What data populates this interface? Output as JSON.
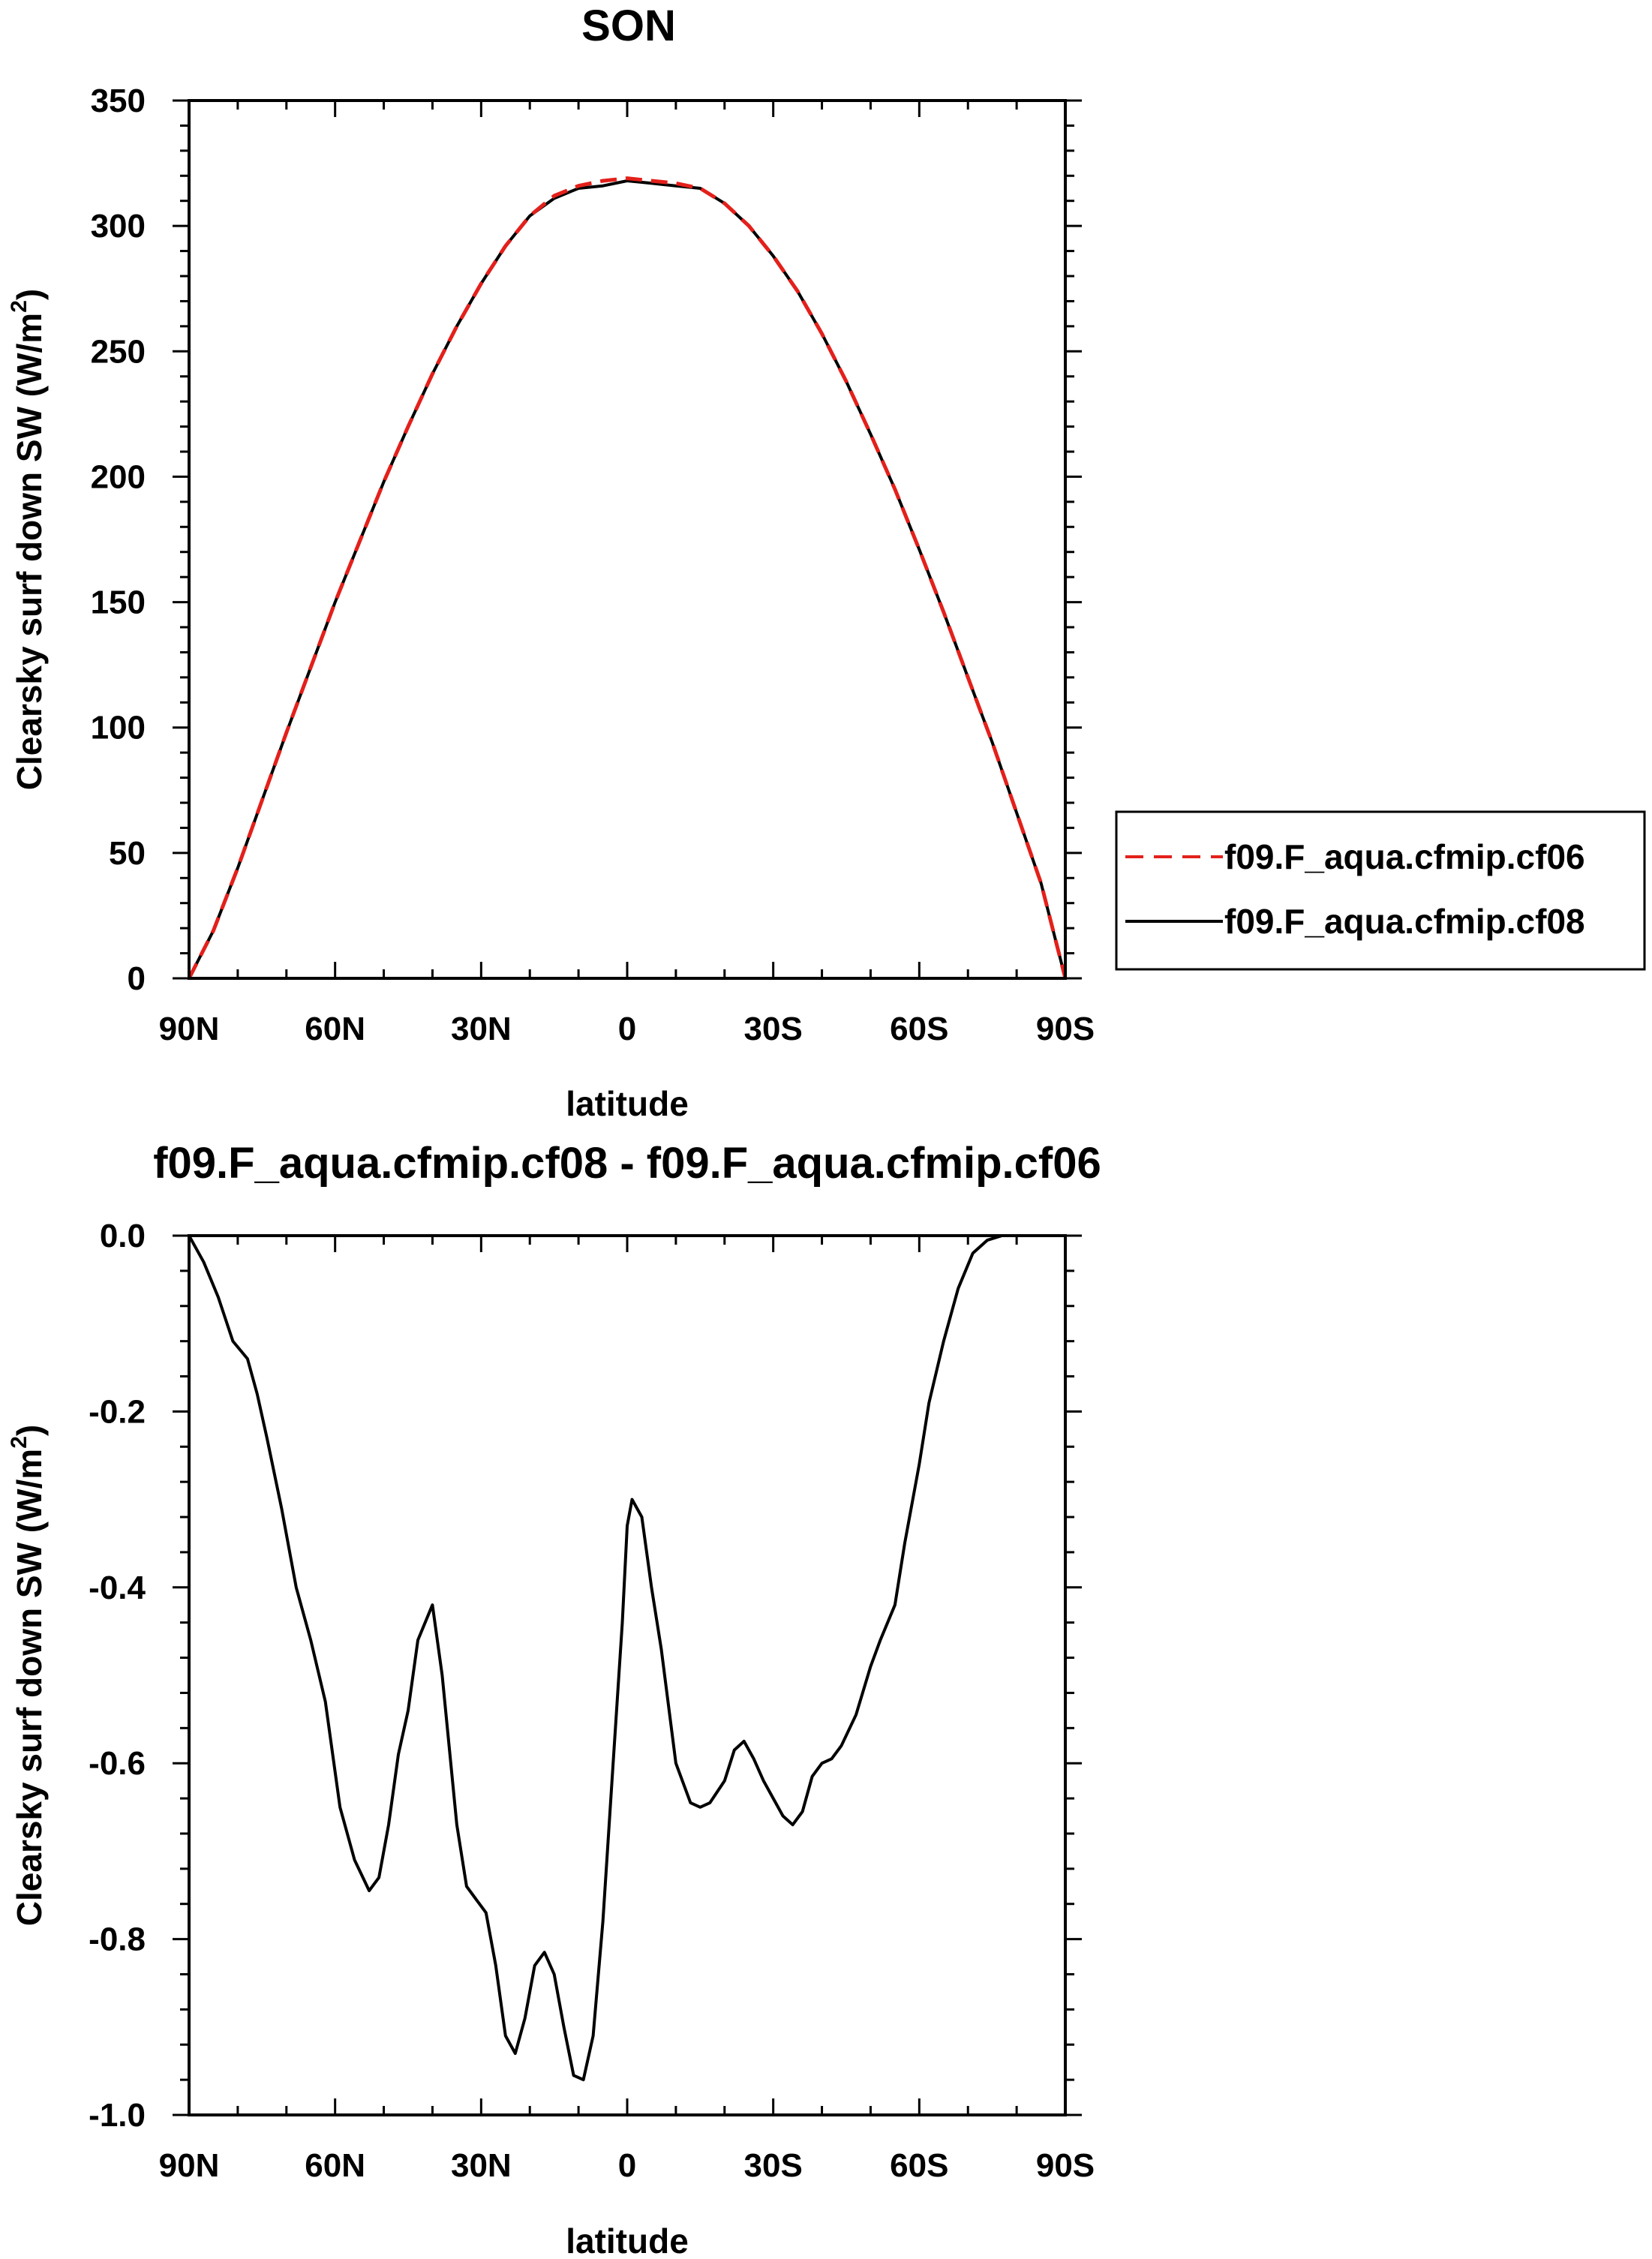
{
  "chart_data": [
    {
      "type": "line",
      "title": "SON",
      "xlabel": "latitude",
      "ylabel": "Clearsky surf down SW (W/m²)",
      "ylabel_main": "Clearsky surf down SW (W/m",
      "ylabel_sup": "2",
      "ylabel_end": ")",
      "xlim": [
        -90,
        90
      ],
      "ylim": [
        0,
        350
      ],
      "xticks": [
        {
          "value": -90,
          "label": "90N"
        },
        {
          "value": -60,
          "label": "60N"
        },
        {
          "value": -30,
          "label": "30N"
        },
        {
          "value": 0,
          "label": "0"
        },
        {
          "value": 30,
          "label": "30S"
        },
        {
          "value": 60,
          "label": "60S"
        },
        {
          "value": 90,
          "label": "90S"
        }
      ],
      "yticks": [
        {
          "value": 0,
          "label": "0"
        },
        {
          "value": 50,
          "label": "50"
        },
        {
          "value": 100,
          "label": "100"
        },
        {
          "value": 150,
          "label": "150"
        },
        {
          "value": 200,
          "label": "200"
        },
        {
          "value": 250,
          "label": "250"
        },
        {
          "value": 300,
          "label": "300"
        },
        {
          "value": 350,
          "label": "350"
        }
      ],
      "x": [
        -90,
        -85,
        -80,
        -75,
        -70,
        -65,
        -60,
        -55,
        -50,
        -45,
        -40,
        -35,
        -30,
        -25,
        -20,
        -15,
        -10,
        -5,
        0,
        5,
        10,
        15,
        20,
        25,
        30,
        35,
        40,
        45,
        50,
        55,
        60,
        65,
        70,
        75,
        80,
        85,
        90
      ],
      "series": [
        {
          "name": "f09.F_aqua.cfmip.cf06",
          "color": "#e3201b",
          "dash": "dashed",
          "values": [
            0,
            19,
            44,
            71,
            98,
            124,
            150,
            174,
            198,
            220,
            241,
            260,
            277,
            292,
            304,
            312,
            316,
            318,
            319,
            318,
            317,
            315,
            309,
            300,
            288,
            274,
            257,
            238,
            217,
            195,
            171,
            146,
            120,
            94,
            66,
            38,
            0
          ]
        },
        {
          "name": "f09.F_aqua.cfmip.cf08",
          "color": "#000000",
          "dash": "solid",
          "values": [
            0,
            19,
            44,
            71,
            98,
            124,
            150,
            174,
            198,
            220,
            241,
            260,
            277,
            292,
            304,
            311,
            315,
            316,
            318,
            317,
            316,
            315,
            309,
            300,
            288,
            274,
            257,
            238,
            217,
            195,
            171,
            146,
            120,
            94,
            66,
            38,
            0
          ]
        }
      ],
      "legend": "right"
    },
    {
      "type": "line",
      "title": "f09.F_aqua.cfmip.cf08 - f09.F_aqua.cfmip.cf06",
      "xlabel": "latitude",
      "ylabel": "Clearsky surf down SW (W/m²)",
      "ylabel_main": "Clearsky surf down SW (W/m",
      "ylabel_sup": "2",
      "ylabel_end": ")",
      "xlim": [
        -90,
        90
      ],
      "ylim": [
        -1.0,
        0.0
      ],
      "xticks": [
        {
          "value": -90,
          "label": "90N"
        },
        {
          "value": -60,
          "label": "60N"
        },
        {
          "value": -30,
          "label": "30N"
        },
        {
          "value": 0,
          "label": "0"
        },
        {
          "value": 30,
          "label": "30S"
        },
        {
          "value": 60,
          "label": "60S"
        },
        {
          "value": 90,
          "label": "90S"
        }
      ],
      "yticks": [
        {
          "value": 0.0,
          "label": "0.0"
        },
        {
          "value": -0.2,
          "label": "-0.2"
        },
        {
          "value": -0.4,
          "label": "-0.4"
        },
        {
          "value": -0.6,
          "label": "-0.6"
        },
        {
          "value": -0.8,
          "label": "-0.8"
        },
        {
          "value": -1.0,
          "label": "-1.0"
        }
      ],
      "x": [
        -90,
        -87,
        -84,
        -81,
        -78,
        -76,
        -74,
        -71,
        -68,
        -65,
        -62,
        -59,
        -56,
        -53,
        -51,
        -49,
        -47,
        -45,
        -43,
        -40,
        -38,
        -35,
        -33,
        -31,
        -29,
        -27,
        -25,
        -23,
        -21,
        -19,
        -17,
        -15,
        -13,
        -11,
        -9,
        -7,
        -5,
        -3,
        -1,
        0,
        1,
        3,
        5,
        7,
        10,
        13,
        15,
        17,
        20,
        22,
        24,
        26,
        28,
        30,
        32,
        34,
        36,
        38,
        40,
        42,
        44,
        47,
        50,
        52,
        55,
        57,
        60,
        62,
        65,
        68,
        71,
        74,
        77,
        80,
        83,
        86,
        88,
        90
      ],
      "series": [
        {
          "name": "f09.F_aqua.cfmip.cf08 - f09.F_aqua.cfmip.cf06",
          "color": "#000000",
          "dash": "solid",
          "values": [
            0.0,
            -0.03,
            -0.07,
            -0.12,
            -0.14,
            -0.18,
            -0.23,
            -0.31,
            -0.4,
            -0.46,
            -0.53,
            -0.65,
            -0.71,
            -0.745,
            -0.73,
            -0.67,
            -0.59,
            -0.54,
            -0.46,
            -0.42,
            -0.5,
            -0.67,
            -0.74,
            -0.755,
            -0.77,
            -0.83,
            -0.91,
            -0.93,
            -0.89,
            -0.83,
            -0.815,
            -0.84,
            -0.9,
            -0.955,
            -0.96,
            -0.91,
            -0.78,
            -0.61,
            -0.44,
            -0.33,
            -0.3,
            -0.32,
            -0.4,
            -0.47,
            -0.6,
            -0.645,
            -0.65,
            -0.645,
            -0.62,
            -0.585,
            -0.575,
            -0.595,
            -0.62,
            -0.64,
            -0.66,
            -0.67,
            -0.655,
            -0.615,
            -0.6,
            -0.595,
            -0.58,
            -0.545,
            -0.49,
            -0.46,
            -0.42,
            -0.35,
            -0.26,
            -0.19,
            -0.12,
            -0.06,
            -0.02,
            -0.005,
            0.0,
            0.0,
            0.0,
            0.0,
            0.0,
            0.0
          ]
        }
      ]
    }
  ]
}
